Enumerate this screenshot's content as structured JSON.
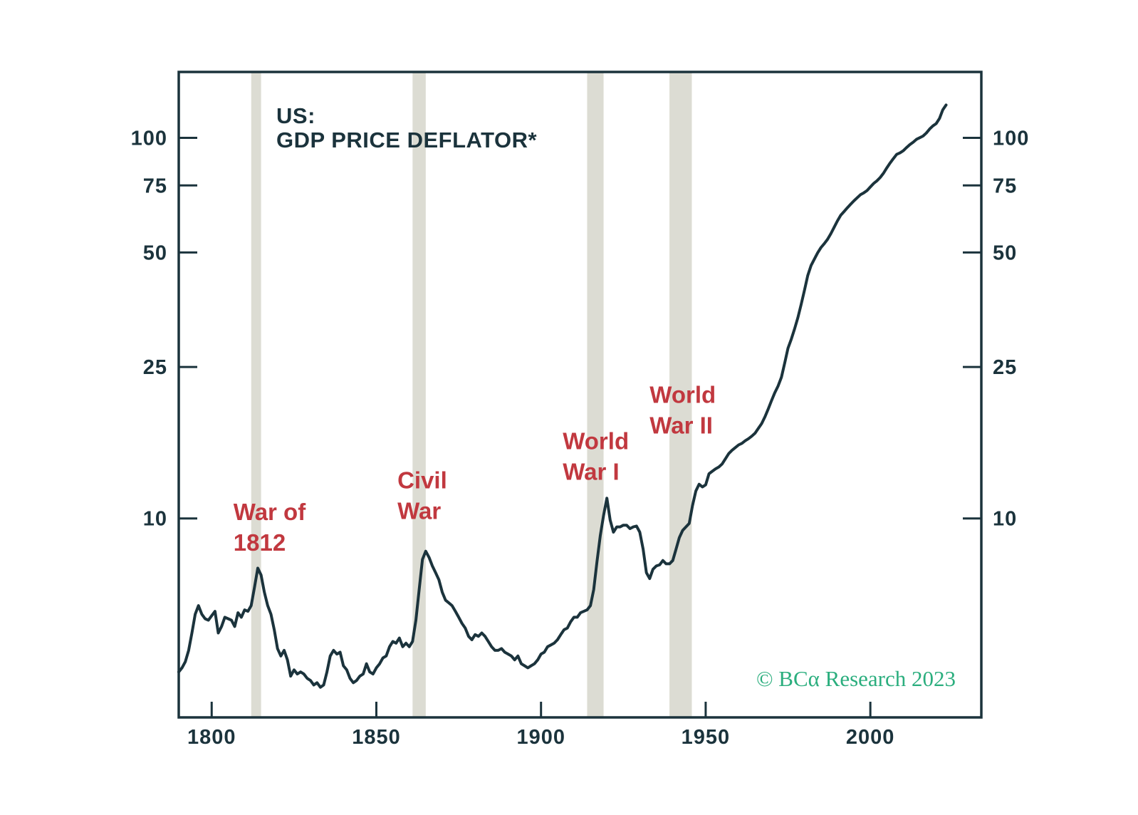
{
  "chart": {
    "title_line1": "US:",
    "title_line2": "GDP PRICE DEFLATOR*",
    "credit": "© BCα Research 2023",
    "y_axis_labels_left": [
      "100",
      "75",
      "50",
      "25",
      "10"
    ],
    "y_axis_labels_right": [
      "100",
      "75",
      "50",
      "25",
      "10"
    ],
    "x_axis_labels": [
      "1800",
      "1850",
      "1900",
      "1950",
      "2000"
    ],
    "colors": {
      "line": "#1b333c",
      "axis": "#1b333c",
      "band": "#dcdcd3",
      "annotation_red": "#c1383f",
      "credit_green": "#2bae7e",
      "background": "#ffffff"
    }
  },
  "chart_data": {
    "type": "line",
    "title": "US: GDP PRICE DEFLATOR*",
    "series_name": "US GDP price deflator",
    "y_scale": "log",
    "grid": false,
    "legend": "none",
    "x_domain": [
      1790,
      2033.7
    ],
    "y_domain": [
      3.0,
      149
    ],
    "x_ticks": [
      1800,
      1850,
      1900,
      1950,
      2000
    ],
    "y_ticks": [
      100,
      75,
      50,
      25,
      10
    ],
    "bands": [
      {
        "label": "War of 1812",
        "from": 1812,
        "to": 1815
      },
      {
        "label": "Civil War",
        "from": 1861,
        "to": 1865
      },
      {
        "label": "World War I",
        "from": 1914,
        "to": 1919
      },
      {
        "label": "World War II",
        "from": 1939,
        "to": 1945.8
      }
    ],
    "annotations": [
      {
        "lines": [
          "War of",
          "1812"
        ],
        "year": 1806.6,
        "value": 9.9
      },
      {
        "lines": [
          "Civil",
          "War"
        ],
        "year": 1856.4,
        "value": 12.0
      },
      {
        "lines": [
          "World",
          "War I"
        ],
        "year": 1906.6,
        "value": 15.2
      },
      {
        "lines": [
          "World",
          "War II"
        ],
        "year": 1933.0,
        "value": 20.1
      }
    ],
    "x": [
      1790,
      1791,
      1792,
      1793,
      1794,
      1795,
      1796,
      1797,
      1798,
      1799,
      1800,
      1801,
      1802,
      1803,
      1804,
      1805,
      1806,
      1807,
      1808,
      1809,
      1810,
      1811,
      1812,
      1813,
      1814,
      1815,
      1816,
      1817,
      1818,
      1819,
      1820,
      1821,
      1822,
      1823,
      1824,
      1825,
      1826,
      1827,
      1828,
      1829,
      1830,
      1831,
      1832,
      1833,
      1834,
      1835,
      1836,
      1837,
      1838,
      1839,
      1840,
      1841,
      1842,
      1843,
      1844,
      1845,
      1846,
      1847,
      1848,
      1849,
      1850,
      1851,
      1852,
      1853,
      1854,
      1855,
      1856,
      1857,
      1858,
      1859,
      1860,
      1861,
      1862,
      1863,
      1864,
      1865,
      1866,
      1867,
      1868,
      1869,
      1870,
      1871,
      1872,
      1873,
      1874,
      1875,
      1876,
      1877,
      1878,
      1879,
      1880,
      1881,
      1882,
      1883,
      1884,
      1885,
      1886,
      1887,
      1888,
      1889,
      1890,
      1891,
      1892,
      1893,
      1894,
      1895,
      1896,
      1897,
      1898,
      1899,
      1900,
      1901,
      1902,
      1903,
      1904,
      1905,
      1906,
      1907,
      1908,
      1909,
      1910,
      1911,
      1912,
      1913,
      1914,
      1915,
      1916,
      1917,
      1918,
      1919,
      1920,
      1921,
      1922,
      1923,
      1924,
      1925,
      1926,
      1927,
      1928,
      1929,
      1930,
      1931,
      1932,
      1933,
      1934,
      1935,
      1936,
      1937,
      1938,
      1939,
      1940,
      1941,
      1942,
      1943,
      1944,
      1945,
      1946,
      1947,
      1948,
      1949,
      1950,
      1951,
      1952,
      1953,
      1954,
      1955,
      1956,
      1957,
      1958,
      1959,
      1960,
      1961,
      1962,
      1963,
      1964,
      1965,
      1966,
      1967,
      1968,
      1969,
      1970,
      1971,
      1972,
      1973,
      1974,
      1975,
      1976,
      1977,
      1978,
      1979,
      1980,
      1981,
      1982,
      1983,
      1984,
      1985,
      1986,
      1987,
      1988,
      1989,
      1990,
      1991,
      1992,
      1993,
      1994,
      1995,
      1996,
      1997,
      1998,
      1999,
      2000,
      2001,
      2002,
      2003,
      2004,
      2005,
      2006,
      2007,
      2008,
      2009,
      2010,
      2011,
      2012,
      2013,
      2014,
      2015,
      2016,
      2017,
      2018,
      2019,
      2020,
      2021,
      2022,
      2023
    ],
    "values": [
      3.95,
      4.05,
      4.2,
      4.5,
      5.0,
      5.6,
      5.9,
      5.6,
      5.45,
      5.4,
      5.55,
      5.7,
      5.0,
      5.2,
      5.5,
      5.45,
      5.4,
      5.2,
      5.65,
      5.5,
      5.75,
      5.7,
      5.9,
      6.6,
      7.4,
      7.1,
      6.4,
      5.9,
      5.6,
      5.1,
      4.55,
      4.35,
      4.5,
      4.25,
      3.85,
      4.0,
      3.9,
      3.95,
      3.9,
      3.8,
      3.75,
      3.65,
      3.7,
      3.6,
      3.65,
      3.95,
      4.35,
      4.5,
      4.4,
      4.45,
      4.1,
      4.0,
      3.8,
      3.7,
      3.75,
      3.85,
      3.9,
      4.15,
      3.95,
      3.9,
      4.05,
      4.15,
      4.3,
      4.35,
      4.6,
      4.75,
      4.7,
      4.85,
      4.6,
      4.7,
      4.6,
      4.75,
      5.4,
      6.5,
      7.8,
      8.2,
      7.9,
      7.5,
      7.2,
      6.9,
      6.4,
      6.1,
      6.0,
      5.9,
      5.7,
      5.5,
      5.3,
      5.15,
      4.9,
      4.8,
      4.95,
      4.9,
      5.0,
      4.9,
      4.75,
      4.6,
      4.5,
      4.5,
      4.55,
      4.45,
      4.4,
      4.35,
      4.25,
      4.35,
      4.15,
      4.1,
      4.05,
      4.1,
      4.15,
      4.25,
      4.4,
      4.45,
      4.6,
      4.65,
      4.7,
      4.8,
      4.95,
      5.1,
      5.15,
      5.35,
      5.5,
      5.5,
      5.65,
      5.7,
      5.75,
      5.9,
      6.5,
      7.7,
      9.0,
      10.2,
      11.3,
      9.9,
      9.2,
      9.5,
      9.5,
      9.6,
      9.6,
      9.4,
      9.5,
      9.55,
      9.2,
      8.3,
      7.2,
      6.95,
      7.35,
      7.5,
      7.55,
      7.75,
      7.6,
      7.6,
      7.75,
      8.3,
      8.9,
      9.3,
      9.5,
      9.7,
      10.8,
      11.8,
      12.3,
      12.1,
      12.25,
      13.1,
      13.3,
      13.5,
      13.65,
      13.9,
      14.35,
      14.8,
      15.1,
      15.35,
      15.6,
      15.75,
      16.0,
      16.2,
      16.45,
      16.75,
      17.25,
      17.75,
      18.5,
      19.4,
      20.4,
      21.4,
      22.3,
      23.5,
      25.6,
      28.0,
      29.6,
      31.5,
      33.7,
      36.5,
      39.8,
      43.5,
      46.2,
      48.0,
      49.9,
      51.5,
      52.7,
      54.1,
      56.0,
      58.2,
      60.5,
      62.6,
      64.0,
      65.5,
      66.9,
      68.3,
      69.6,
      70.9,
      71.7,
      72.7,
      74.3,
      75.9,
      77.1,
      78.7,
      80.8,
      83.4,
      85.9,
      88.2,
      90.5,
      91.3,
      92.5,
      94.3,
      96.0,
      97.4,
      99.1,
      100.1,
      101.1,
      103.0,
      105.5,
      107.5,
      109.0,
      112.5,
      118.5,
      122.0
    ]
  }
}
